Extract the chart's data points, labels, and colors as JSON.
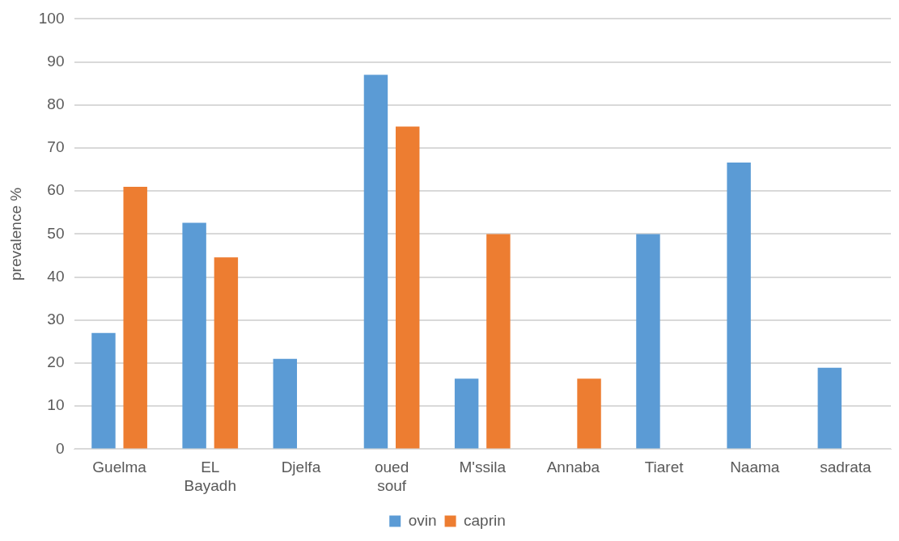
{
  "chart_data": {
    "type": "bar",
    "ylabel": "prevalence %",
    "categories": [
      "Guelma",
      "EL Bayadh",
      "Djelfa",
      "oued souf",
      "M'ssila",
      "Annaba",
      "Tiaret",
      "Naama",
      "sadrata"
    ],
    "series": [
      {
        "name": "ovin",
        "color": "#5b9bd5",
        "values": [
          27,
          52.6,
          21,
          87,
          16.4,
          null,
          50,
          66.6,
          18.9
        ]
      },
      {
        "name": "caprin",
        "color": "#ed7d31",
        "values": [
          61,
          44.6,
          null,
          75,
          50,
          16.4,
          null,
          null,
          null
        ]
      }
    ],
    "ylim": [
      0,
      100
    ],
    "yticks": [
      0,
      10,
      20,
      30,
      40,
      50,
      60,
      70,
      80,
      90,
      100
    ],
    "grid": "y",
    "legend": "bottom"
  }
}
